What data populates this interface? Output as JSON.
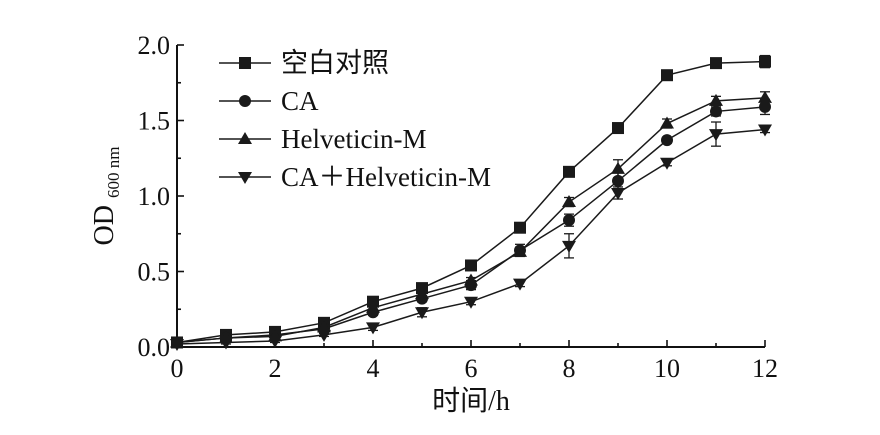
{
  "chart_data": {
    "type": "line",
    "x": [
      0,
      1,
      2,
      3,
      4,
      5,
      6,
      7,
      8,
      9,
      10,
      11,
      12
    ],
    "xlim": [
      0,
      12
    ],
    "ylim": [
      0,
      2.0
    ],
    "xticks": [
      "0",
      "2",
      "4",
      "6",
      "8",
      "10",
      "12"
    ],
    "xtick_values": [
      0,
      2,
      4,
      6,
      8,
      10,
      12
    ],
    "yticks": [
      "0.0",
      "0.5",
      "1.0",
      "1.5",
      "2.0"
    ],
    "ytick_values": [
      0,
      0.5,
      1.0,
      1.5,
      2.0
    ],
    "xlabel": "时间/h",
    "ylabel_main": "OD",
    "ylabel_sub": "600 nm",
    "legend_position": "top-left",
    "grid": false,
    "series": [
      {
        "name": "空白对照",
        "marker": "square",
        "values": [
          0.03,
          0.08,
          0.1,
          0.16,
          0.3,
          0.39,
          0.54,
          0.79,
          1.16,
          1.45,
          1.8,
          1.88,
          1.89
        ],
        "errors": [
          0.01,
          0.01,
          0.01,
          0.01,
          0.02,
          0.02,
          0.02,
          0.02,
          0.02,
          0.02,
          0.02,
          0.02,
          0.04
        ]
      },
      {
        "name": "CA",
        "marker": "circle",
        "values": [
          0.03,
          0.06,
          0.08,
          0.12,
          0.23,
          0.32,
          0.41,
          0.64,
          0.84,
          1.1,
          1.37,
          1.56,
          1.59
        ],
        "errors": [
          0.01,
          0.01,
          0.01,
          0.01,
          0.02,
          0.02,
          0.03,
          0.04,
          0.04,
          0.06,
          0.02,
          0.03,
          0.05
        ]
      },
      {
        "name": "Helveticin-M",
        "marker": "triangle-up",
        "values": [
          0.03,
          0.06,
          0.07,
          0.13,
          0.26,
          0.35,
          0.44,
          0.63,
          0.96,
          1.18,
          1.48,
          1.63,
          1.65
        ],
        "errors": [
          0.01,
          0.01,
          0.01,
          0.01,
          0.02,
          0.02,
          0.02,
          0.03,
          0.03,
          0.06,
          0.03,
          0.03,
          0.04
        ]
      },
      {
        "name": "CA＋Helveticin-M",
        "marker": "triangle-down",
        "values": [
          0.02,
          0.03,
          0.04,
          0.08,
          0.13,
          0.23,
          0.3,
          0.42,
          0.67,
          1.02,
          1.22,
          1.41,
          1.44
        ],
        "errors": [
          0.01,
          0.01,
          0.01,
          0.01,
          0.02,
          0.03,
          0.02,
          0.02,
          0.08,
          0.04,
          0.02,
          0.08,
          0.02
        ]
      }
    ]
  }
}
